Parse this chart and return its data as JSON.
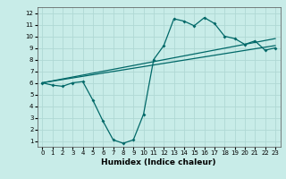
{
  "title": "",
  "xlabel": "Humidex (Indice chaleur)",
  "bg_color": "#c8ece8",
  "grid_color": "#b0d8d4",
  "line_color": "#006868",
  "xlim": [
    -0.5,
    23.5
  ],
  "ylim": [
    0.5,
    12.5
  ],
  "xticks": [
    0,
    1,
    2,
    3,
    4,
    5,
    6,
    7,
    8,
    9,
    10,
    11,
    12,
    13,
    14,
    15,
    16,
    17,
    18,
    19,
    20,
    21,
    22,
    23
  ],
  "yticks": [
    1,
    2,
    3,
    4,
    5,
    6,
    7,
    8,
    9,
    10,
    11,
    12
  ],
  "line1_x": [
    0,
    1,
    2,
    3,
    4,
    5,
    6,
    7,
    8,
    9,
    10,
    11,
    12,
    13,
    14,
    15,
    16,
    17,
    18,
    19,
    20,
    21,
    22,
    23
  ],
  "line1_y": [
    6.0,
    5.8,
    5.7,
    6.0,
    6.1,
    4.5,
    2.7,
    1.1,
    0.8,
    1.1,
    3.3,
    8.0,
    9.2,
    11.5,
    11.3,
    10.9,
    11.6,
    11.1,
    10.0,
    9.8,
    9.3,
    9.6,
    8.8,
    9.0
  ],
  "line2_x": [
    0,
    23
  ],
  "line2_y": [
    6.0,
    9.2
  ],
  "line3_x": [
    0,
    23
  ],
  "line3_y": [
    6.0,
    9.8
  ],
  "xlabel_fontsize": 6.5,
  "tick_fontsize": 5.0
}
